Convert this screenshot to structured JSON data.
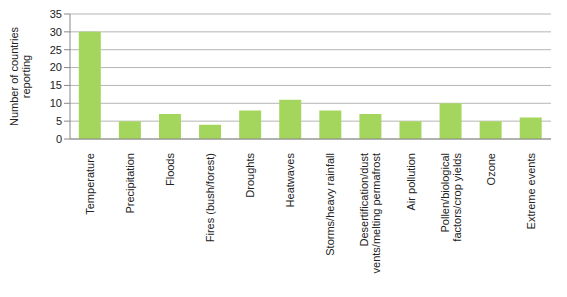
{
  "chart_data": {
    "type": "bar",
    "y_label": "Number of countries reporting",
    "categories": [
      "Temperature",
      "Precipitation",
      "Floods",
      "Fires (bush/forest)",
      "Droughts",
      "Heatwaves",
      "Storms/heavy rainfall",
      "Desertification/dust vents/melting permafrost",
      "Air pollution",
      "Pollen/biological factors/crop yields",
      "Ozone",
      "Extreme events"
    ],
    "values": [
      30,
      5,
      7,
      4,
      8,
      11,
      8,
      7,
      5,
      10,
      5,
      6
    ],
    "color": "#a4d65e",
    "ylim": [
      0,
      35
    ],
    "yticks": [
      0,
      5,
      10,
      15,
      20,
      25,
      30,
      35
    ],
    "grid": true
  }
}
